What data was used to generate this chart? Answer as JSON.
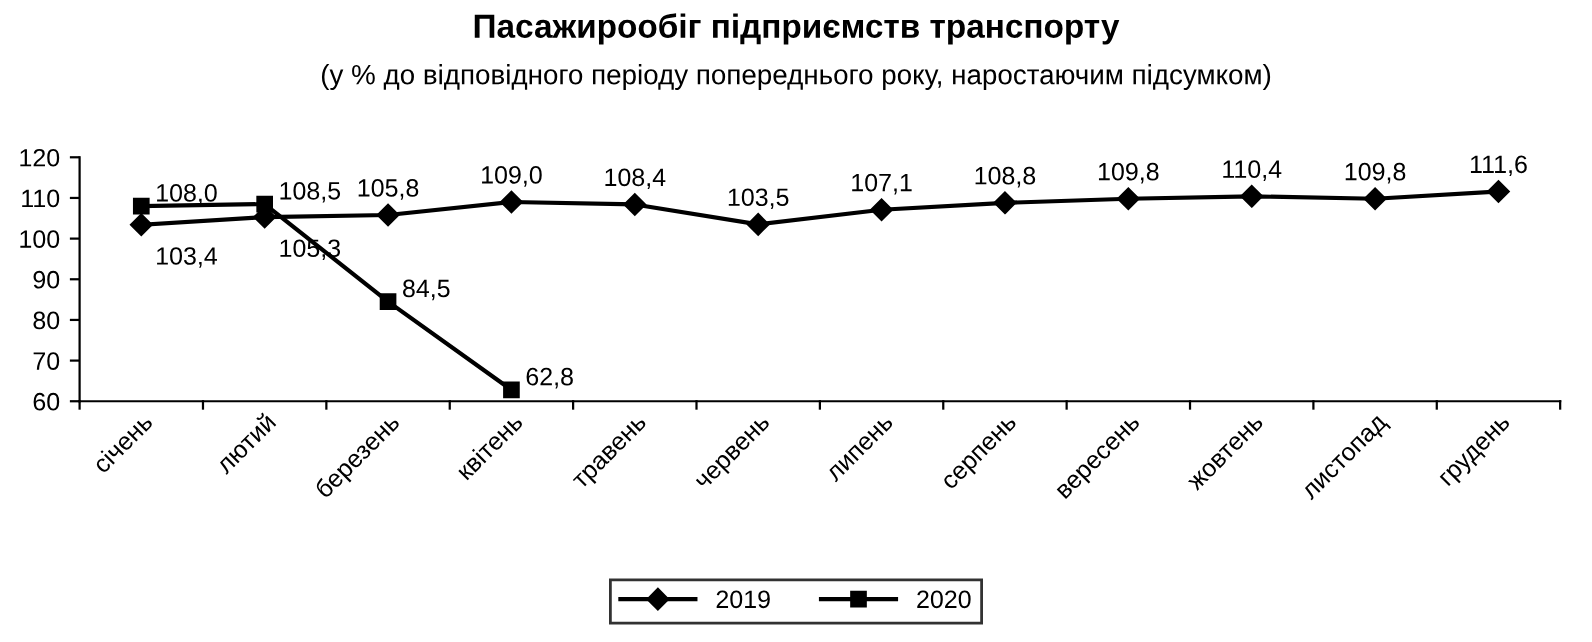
{
  "chart_data": {
    "type": "line",
    "title": "Пасажирообіг підприємств транспорту",
    "subtitle": "(у % до відповідного періоду попереднього року, наростаючим підсумком)",
    "categories": [
      "січень",
      "лютий",
      "березень",
      "квітень",
      "травень",
      "червень",
      "липень",
      "серпень",
      "вересень",
      "жовтень",
      "листопад",
      "грудень"
    ],
    "series": [
      {
        "name": "2019",
        "color": "#000000",
        "marker": "diamond",
        "values": [
          103.4,
          105.3,
          105.8,
          109.0,
          108.4,
          103.5,
          107.1,
          108.8,
          109.8,
          110.4,
          109.8,
          111.6
        ],
        "value_labels": [
          "103,4",
          "105,3",
          "105,8",
          "109,0",
          "108,4",
          "103,5",
          "107,1",
          "108,8",
          "109,8",
          "110,4",
          "109,8",
          "111,6"
        ]
      },
      {
        "name": "2020",
        "color": "#000000",
        "marker": "square",
        "values": [
          108.0,
          108.5,
          84.5,
          62.8,
          null,
          null,
          null,
          null,
          null,
          null,
          null,
          null
        ],
        "value_labels": [
          "108,0",
          "108,5",
          "84,5",
          "62,8",
          null,
          null,
          null,
          null,
          null,
          null,
          null,
          null
        ]
      }
    ],
    "ylim": [
      60,
      120
    ],
    "yticks": [
      60,
      70,
      80,
      90,
      100,
      110,
      120
    ],
    "grid": false,
    "legend": "bottom",
    "line_style": "solid"
  }
}
